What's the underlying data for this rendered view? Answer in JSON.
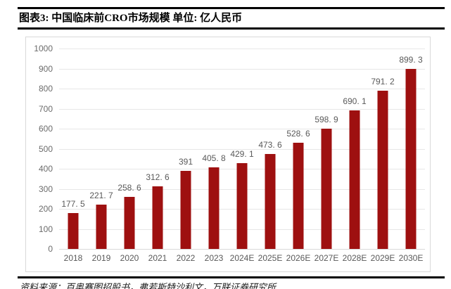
{
  "header": {
    "title": "图表3: 中国临床前CRO市场规模 单位: 亿人民币"
  },
  "chart_data": {
    "type": "bar",
    "title": "中国临床前CRO市场规模",
    "unit": "亿人民币",
    "categories": [
      "2018",
      "2019",
      "2020",
      "2021",
      "2022",
      "2023",
      "2024E",
      "2025E",
      "2026E",
      "2027E",
      "2028E",
      "2029E",
      "2030E"
    ],
    "values": [
      177.5,
      221.7,
      258.6,
      312.6,
      391,
      405.8,
      429.1,
      473.6,
      528.6,
      598.9,
      690.1,
      791.2,
      899.3
    ],
    "value_labels": [
      "177. 5",
      "221. 7",
      "258. 6",
      "312. 6",
      "391",
      "405. 8",
      "429. 1",
      "473. 6",
      "528. 6",
      "598. 9",
      "690. 1",
      "791. 2",
      "899. 3"
    ],
    "xlabel": "",
    "ylabel": "",
    "ylim": [
      0,
      1000
    ],
    "yticks": [
      0,
      100,
      200,
      300,
      400,
      500,
      600,
      700,
      800,
      900,
      1000
    ],
    "grid": true,
    "legend": null,
    "bar_color": "#9E1010",
    "label_color": "#595959",
    "gridline_color": "#e7e7e7"
  },
  "footer": {
    "source": "资料来源：百奥赛图招股书，弗若斯特沙利文，万联证券研究所"
  }
}
